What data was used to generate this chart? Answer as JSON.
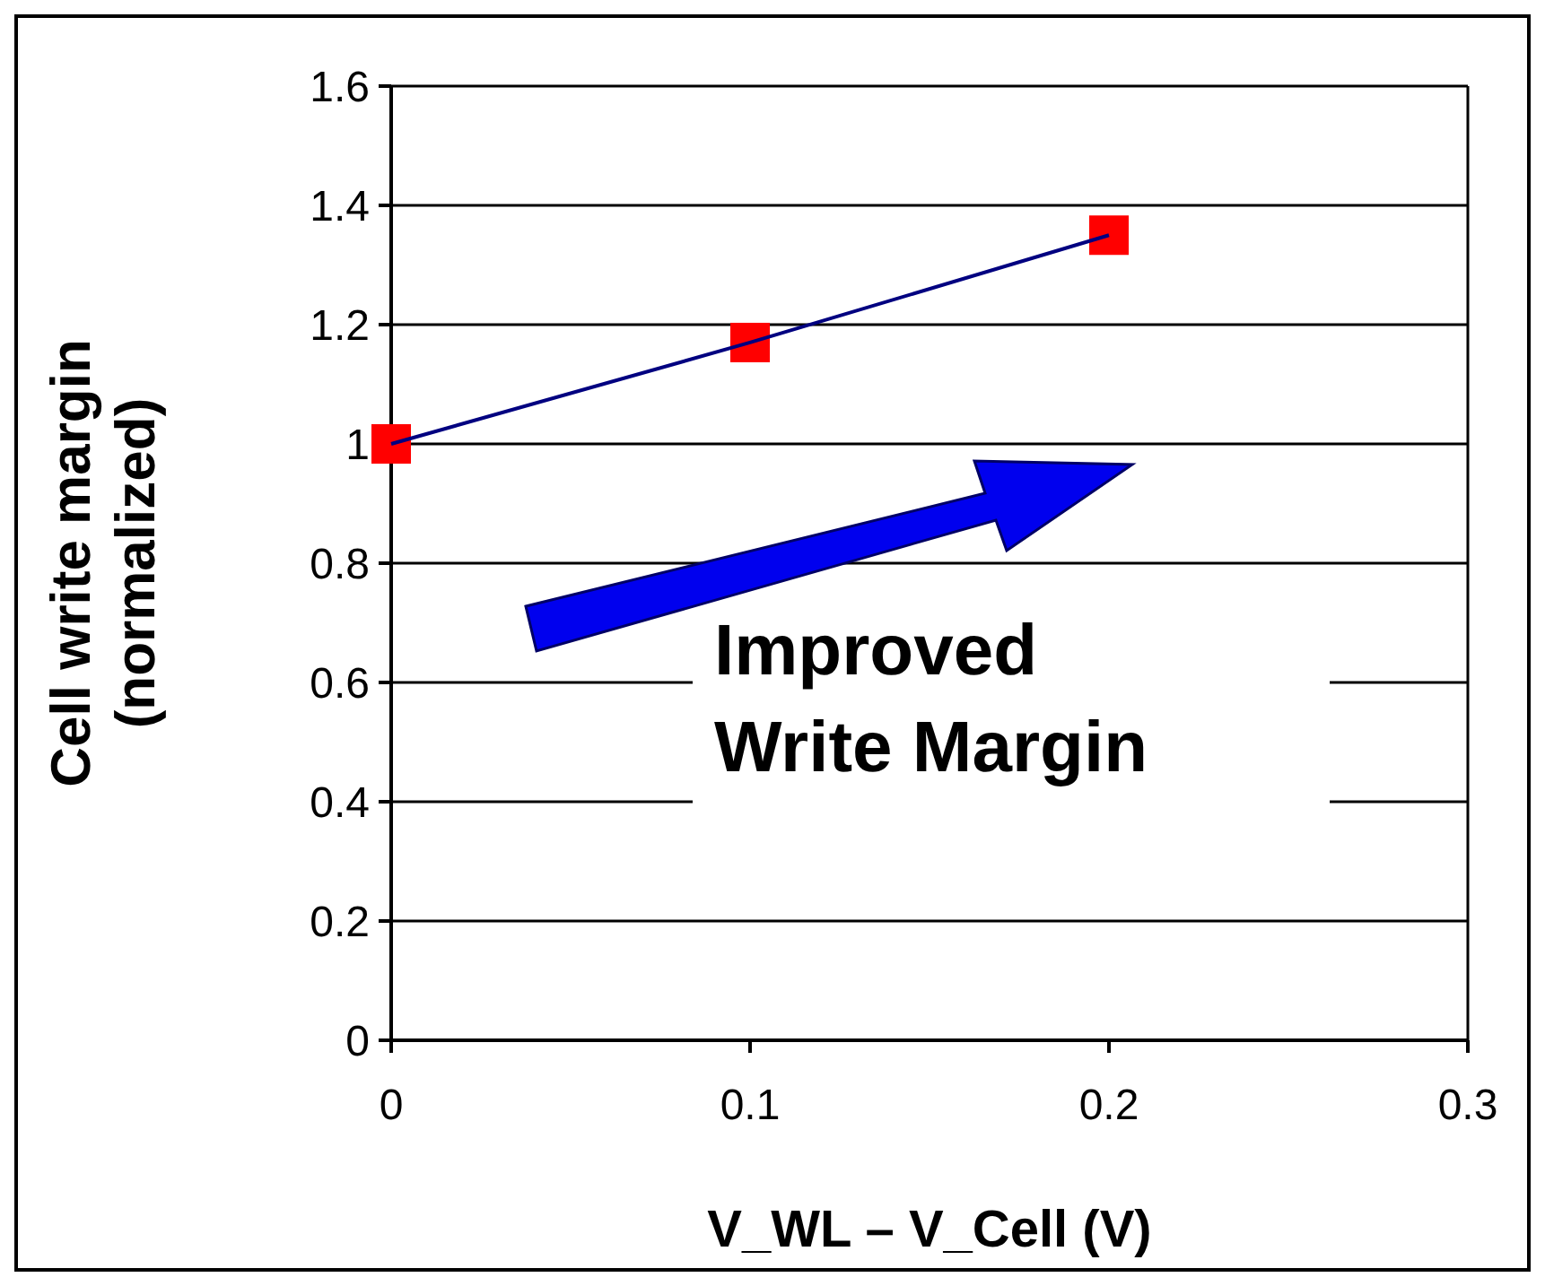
{
  "chart_data": {
    "type": "line",
    "xlabel": "V_WL – V_Cell  (V)",
    "ylabel": "Cell write margin\n(normalized)",
    "x": [
      0,
      0.1,
      0.2
    ],
    "series": [
      {
        "color": "#000080",
        "marker": "none",
        "values": [
          1,
          1.17,
          1.35
        ]
      },
      {
        "type": "scatter",
        "color": "#ff0000",
        "marker": "square",
        "values": [
          1,
          1.17,
          1.35
        ]
      }
    ],
    "xlim": [
      0,
      0.3
    ],
    "xticks": [
      0,
      0.1,
      0.2,
      0.3
    ],
    "ylim": [
      0,
      1.6
    ],
    "yticks": [
      0,
      0.2,
      0.4,
      0.6,
      0.8,
      1,
      1.2,
      1.4,
      1.6
    ],
    "grid": "y",
    "annotations": [
      "Improved Write Margin"
    ]
  }
}
